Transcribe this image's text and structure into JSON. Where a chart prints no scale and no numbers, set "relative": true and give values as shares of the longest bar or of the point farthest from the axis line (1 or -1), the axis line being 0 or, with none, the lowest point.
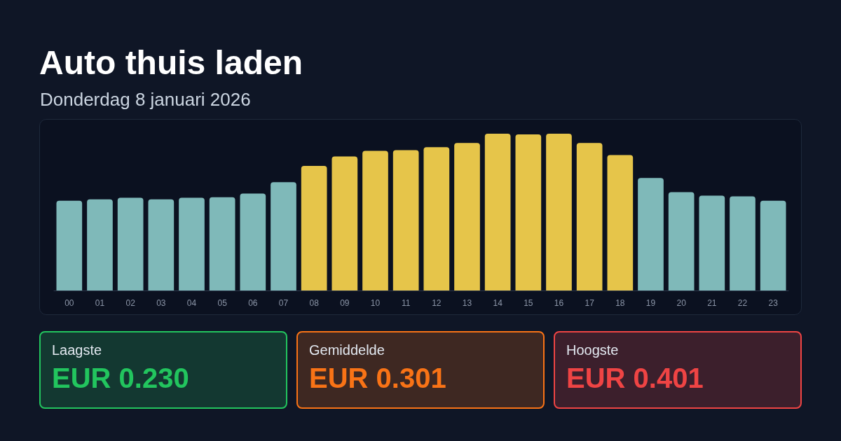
{
  "chart_data": [
    {
      "type": "bar",
      "title": "Auto thuis laden",
      "subtitle": "Donderdag 8 januari 2026",
      "relative": true,
      "tick_labels": "x",
      "categories": [
        "00",
        "01",
        "02",
        "03",
        "04",
        "05",
        "06",
        "07",
        "08",
        "09",
        "10",
        "11",
        "12",
        "13",
        "14",
        "15",
        "16",
        "17",
        "18",
        "19",
        "20",
        "21",
        "22",
        "23"
      ],
      "values": [
        0.573,
        0.582,
        0.591,
        0.582,
        0.591,
        0.595,
        0.618,
        0.691,
        0.795,
        0.855,
        0.891,
        0.895,
        0.914,
        0.941,
        1,
        0.995,
        1,
        0.941,
        0.864,
        0.718,
        0.627,
        0.605,
        0.6,
        0.573
      ],
      "colors": [
        "#7fb9b9",
        "#7fb9b9",
        "#7fb9b9",
        "#7fb9b9",
        "#7fb9b9",
        "#7fb9b9",
        "#7fb9b9",
        "#7fb9b9",
        "#e6c54a",
        "#e6c54a",
        "#e6c54a",
        "#e6c54a",
        "#e6c54a",
        "#e6c54a",
        "#e6c54a",
        "#e6c54a",
        "#e6c54a",
        "#e6c54a",
        "#e6c54a",
        "#7fb9b9",
        "#7fb9b9",
        "#7fb9b9",
        "#7fb9b9",
        "#7fb9b9"
      ]
    },
    {
      "type": "other",
      "annotations": [
        "Laagste",
        "EUR 0.230",
        "Gemiddelde",
        "EUR 0.301",
        "Hoogste",
        "EUR 0.401"
      ],
      "colors": [
        "#22c55e",
        "#f97316",
        "#ef4444"
      ]
    }
  ]
}
